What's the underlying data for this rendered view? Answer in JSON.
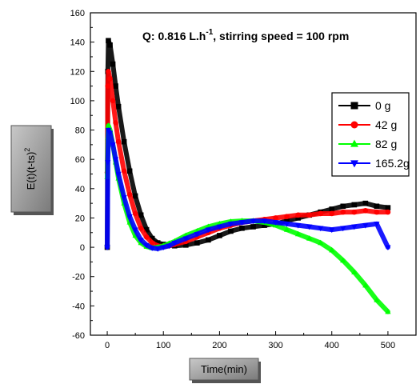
{
  "chart_data": {
    "type": "scatter",
    "title": {
      "prefix": "Q: 0.816 L.h",
      "superscript": "-1",
      "suffix": ", stirring speed = 100 rpm"
    },
    "xlabel": "Time(min)",
    "ylabel": {
      "main": "E(t)(t-ts)",
      "superscript": "2"
    },
    "xlim": [
      -30,
      550
    ],
    "ylim": [
      -60,
      160
    ],
    "xticks": [
      0,
      100,
      200,
      300,
      400,
      500
    ],
    "yticks": [
      -60,
      -40,
      -20,
      0,
      20,
      40,
      60,
      80,
      100,
      120,
      140,
      160
    ],
    "grid": false,
    "legend_position": "top-right",
    "series": [
      {
        "name": "0 g",
        "color": "#000000",
        "marker": "square",
        "x": [
          0,
          1,
          2,
          5,
          10,
          15,
          20,
          30,
          40,
          50,
          60,
          70,
          80,
          90,
          100,
          110,
          120,
          140,
          160,
          180,
          200,
          220,
          240,
          260,
          280,
          300,
          320,
          340,
          360,
          380,
          400,
          420,
          440,
          460,
          480,
          500
        ],
        "values": [
          0,
          120,
          141,
          138,
          125,
          110,
          96,
          72,
          52,
          35,
          22,
          12,
          6,
          3,
          2,
          1.5,
          1,
          1.5,
          3,
          5,
          8,
          11,
          13,
          14,
          15,
          16,
          18,
          20,
          22,
          24,
          26,
          28,
          29,
          30,
          28,
          27
        ]
      },
      {
        "name": "42 g",
        "color": "#ff0000",
        "marker": "circle",
        "x": [
          0,
          1,
          2,
          5,
          10,
          15,
          20,
          30,
          40,
          50,
          60,
          70,
          80,
          90,
          100,
          110,
          120,
          140,
          160,
          180,
          200,
          220,
          240,
          260,
          280,
          300,
          320,
          340,
          360,
          380,
          400,
          420,
          440,
          460,
          480,
          500
        ],
        "values": [
          51,
          110,
          120,
          115,
          100,
          85,
          72,
          52,
          36,
          23,
          13,
          7,
          3,
          1,
          0.5,
          1,
          2,
          4,
          7,
          10,
          13,
          15,
          17,
          18,
          19,
          20,
          21,
          22,
          22,
          23,
          23,
          24,
          24,
          25,
          24,
          24
        ]
      },
      {
        "name": "82 g",
        "color": "#00ff00",
        "marker": "triangle-up",
        "x": [
          0,
          1,
          2,
          5,
          10,
          15,
          20,
          30,
          40,
          50,
          60,
          70,
          80,
          90,
          100,
          110,
          120,
          140,
          160,
          180,
          200,
          220,
          240,
          260,
          280,
          300,
          320,
          340,
          360,
          380,
          400,
          420,
          440,
          460,
          480,
          500
        ],
        "values": [
          48,
          75,
          83,
          80,
          70,
          58,
          47,
          30,
          17,
          8,
          3,
          0.5,
          -0.5,
          0,
          1,
          2.5,
          4,
          8,
          11,
          14,
          16,
          17.5,
          18,
          18,
          17,
          15,
          12,
          9,
          6,
          3,
          -2,
          -9,
          -17,
          -26,
          -36,
          -44
        ]
      },
      {
        "name": "165.2g",
        "color": "#0000ff",
        "marker": "triangle-down",
        "x": [
          0,
          1,
          2,
          5,
          10,
          15,
          20,
          30,
          40,
          50,
          60,
          70,
          80,
          90,
          100,
          110,
          120,
          140,
          160,
          180,
          200,
          220,
          240,
          260,
          280,
          300,
          320,
          340,
          360,
          380,
          400,
          420,
          440,
          460,
          480,
          500
        ],
        "values": [
          0,
          58,
          80,
          78,
          70,
          60,
          50,
          34,
          21,
          12,
          5,
          1.5,
          -0.5,
          -1,
          0,
          1,
          3,
          6,
          9,
          12,
          14,
          16,
          17,
          18,
          18,
          17,
          16,
          15,
          14,
          13,
          12,
          13,
          14,
          15,
          16,
          0
        ]
      }
    ]
  }
}
